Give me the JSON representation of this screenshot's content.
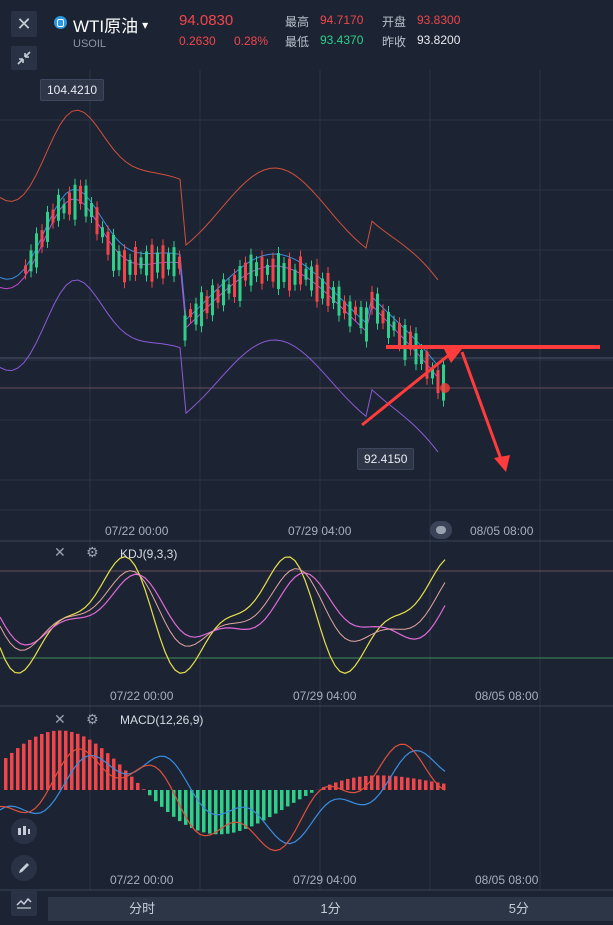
{
  "header": {
    "close_icon": "close-icon",
    "collapse_icon": "collapse-arrows-icon",
    "symbol_icon": "instrument-icon",
    "title": "WTI原油",
    "title_caret": "▾",
    "subtitle": "USOIL",
    "price": "94.0830",
    "change": "0.2630",
    "change_pct": "0.28%",
    "stats": {
      "high_label": "最高",
      "high": "94.7170",
      "open_label": "开盘",
      "open": "93.8300",
      "low_label": "最低",
      "low": "93.4370",
      "prev_label": "昨收",
      "prev": "93.8200"
    }
  },
  "main_chart": {
    "max_tag": "104.4210",
    "min_tag": "92.4150",
    "time_labels": [
      "07/22 00:00",
      "07/29 04:00",
      "08/05 08:00"
    ],
    "toggle_icon": "eye-toggle-icon"
  },
  "kdj": {
    "label": "KDJ(9,3,3)",
    "close_icon": "close-icon",
    "settings_icon": "settings-icon",
    "time_labels": [
      "07/22 00:00",
      "07/29 04:00",
      "08/05 08:00"
    ]
  },
  "macd": {
    "label": "MACD(12,26,9)",
    "close_icon": "close-icon",
    "settings_icon": "settings-icon",
    "time_labels": [
      "07/22 00:00",
      "07/29 04:00",
      "08/05 08:00"
    ]
  },
  "left_tools": [
    "candlestick-icon",
    "pencil-icon",
    "indicator-icon"
  ],
  "timeframe_tabs": [
    "分时",
    "1分",
    "5分"
  ],
  "colors": {
    "up": "#f0464a",
    "down": "#2fcf8a",
    "background": "#1c2433",
    "annotation": "#ff3b3b"
  }
}
